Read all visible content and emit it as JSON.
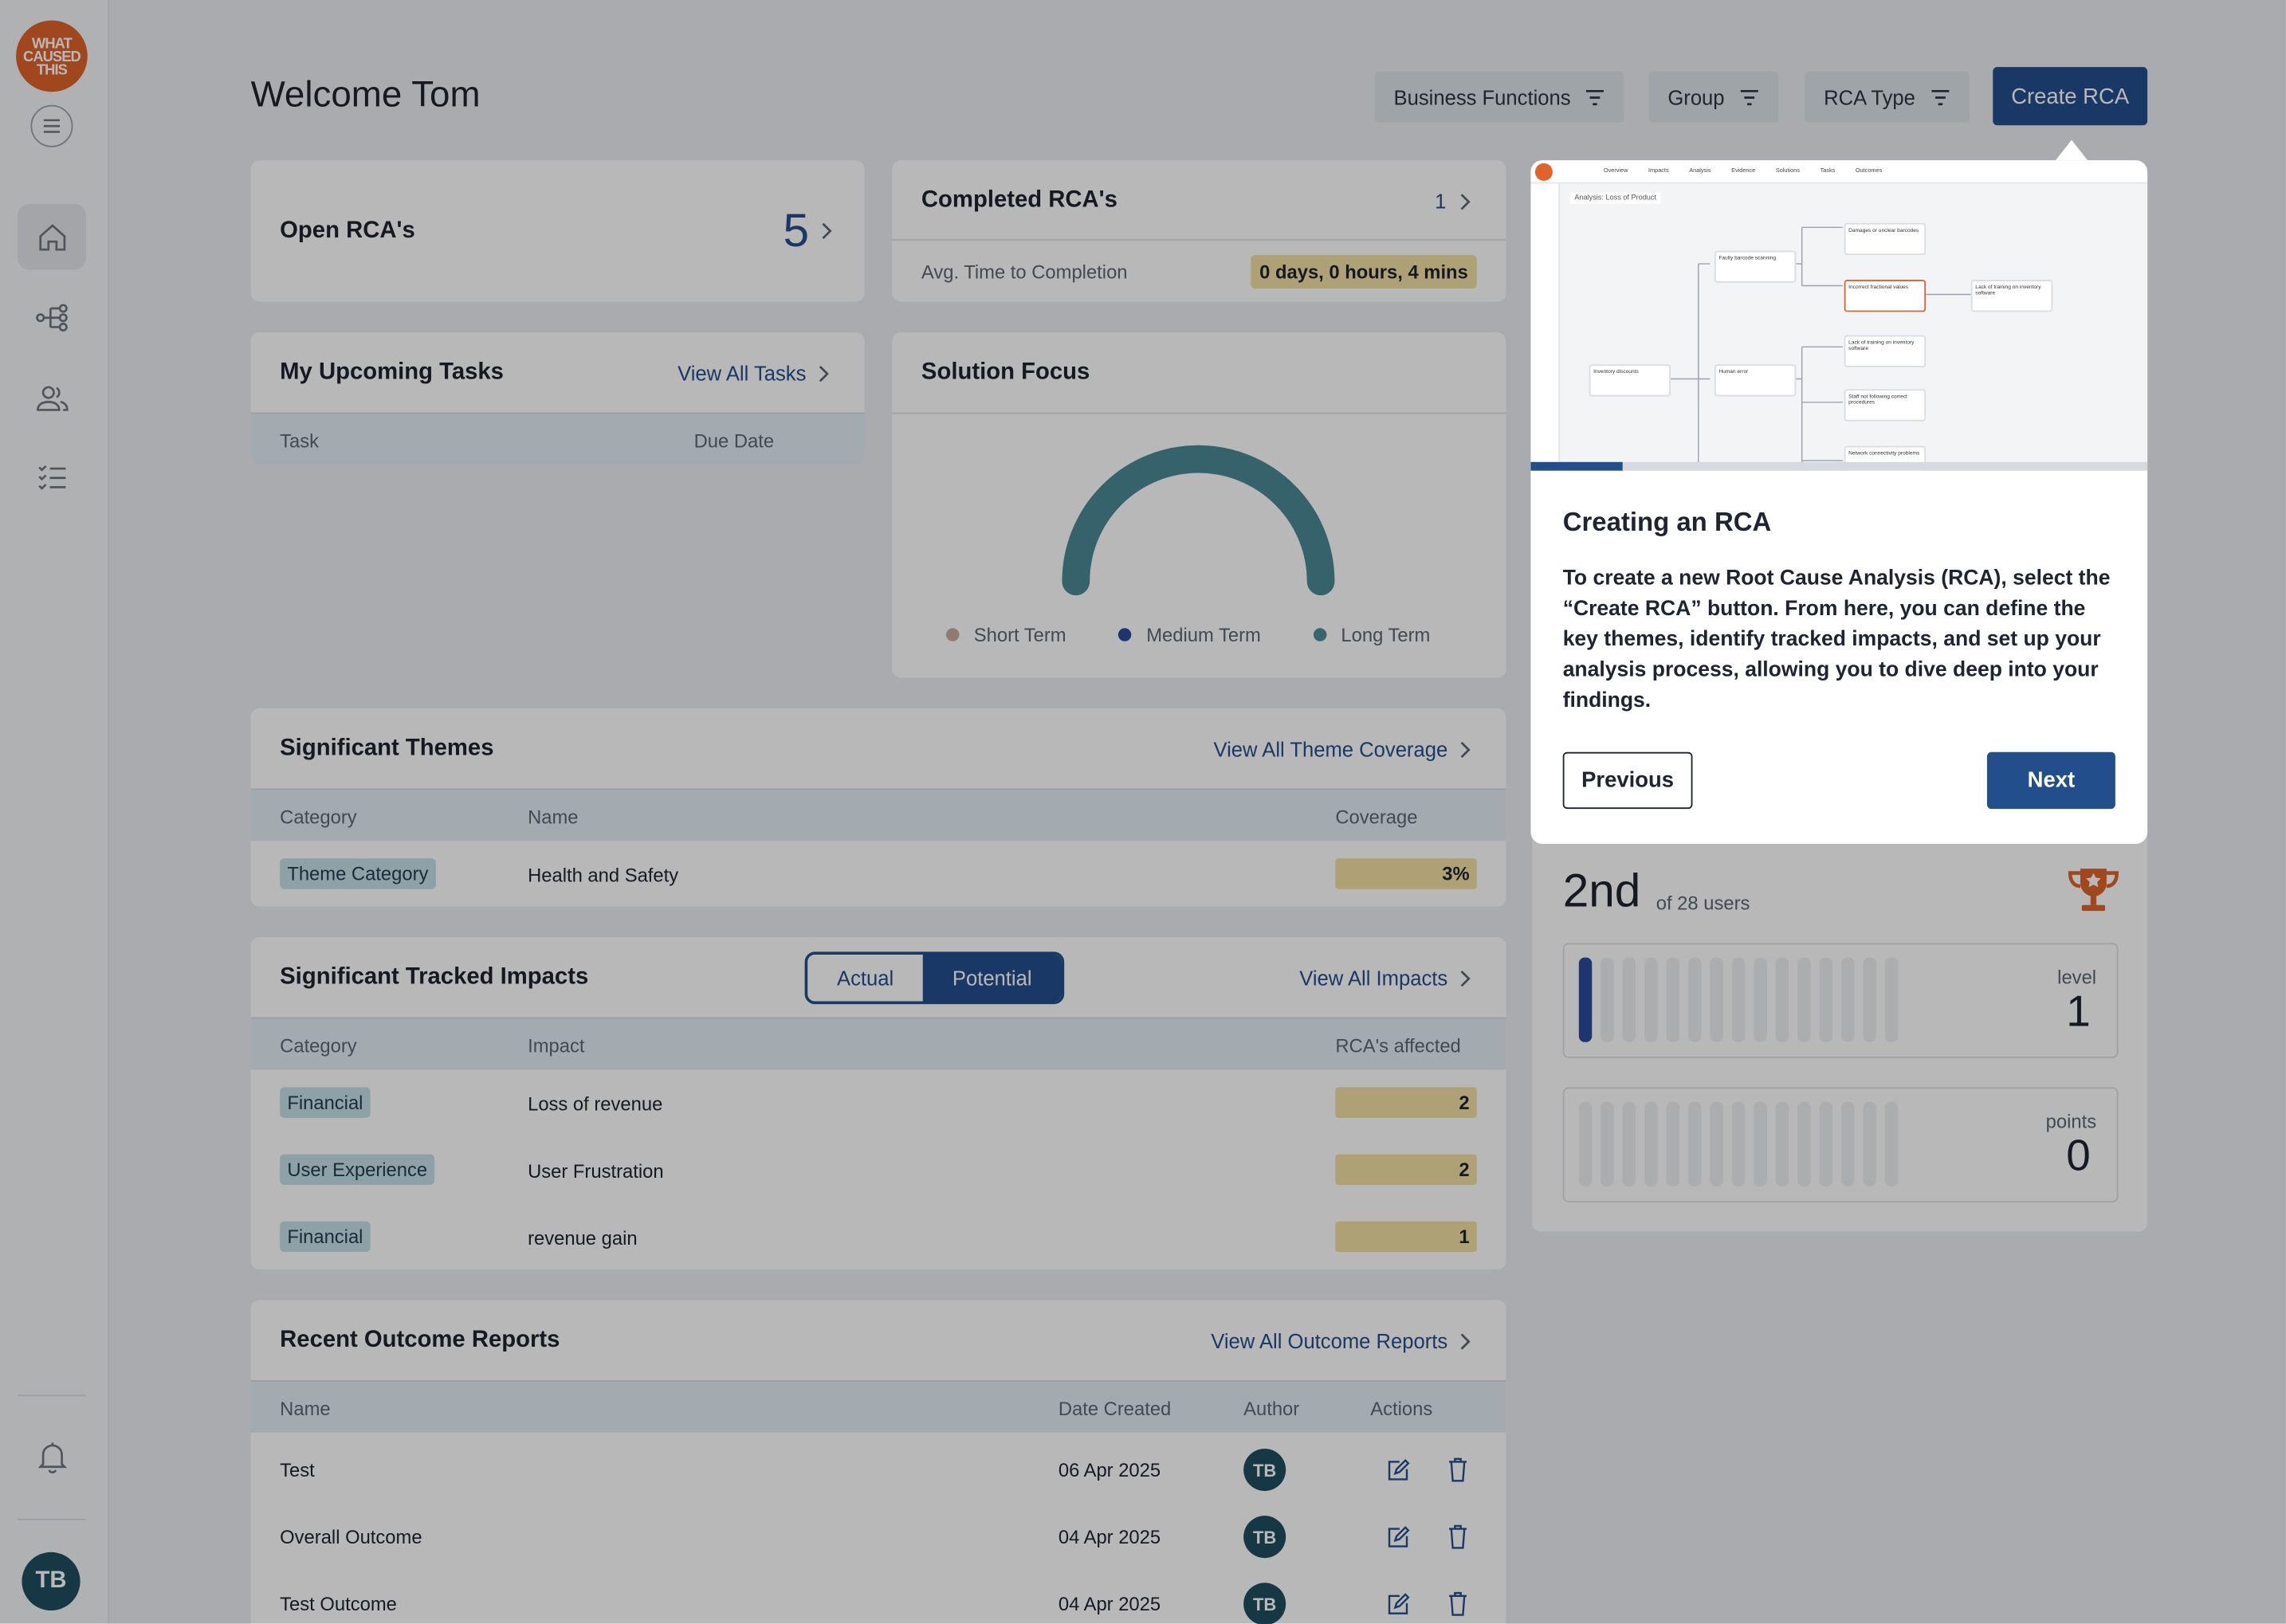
{
  "sidebar": {
    "logo_text": "WHAT CAUSED THIS",
    "user_initials": "TB",
    "icons": [
      "menu-icon",
      "home-icon",
      "hierarchy-icon",
      "users-icon",
      "checklist-icon",
      "bell-icon"
    ]
  },
  "header": {
    "welcome": "Welcome Tom",
    "filters": [
      "Business Functions",
      "Group",
      "RCA Type"
    ],
    "create": "Create RCA"
  },
  "open_rcas": {
    "label": "Open RCA's",
    "count": "5"
  },
  "completed_rcas": {
    "label": "Completed RCA's",
    "count": "1",
    "avg_label": "Avg. Time to Completion",
    "avg_value": "0 days, 0 hours, 4 mins"
  },
  "tasks": {
    "title": "My Upcoming Tasks",
    "link": "View All Tasks",
    "col_task": "Task",
    "col_due": "Due Date"
  },
  "solution": {
    "title": "Solution Focus",
    "legend": [
      {
        "label": "Short Term",
        "color": "#c9a99a"
      },
      {
        "label": "Medium Term",
        "color": "#2a4a9a"
      },
      {
        "label": "Long Term",
        "color": "#4b8c99"
      }
    ],
    "gauge_color": "#4b8896"
  },
  "themes": {
    "title": "Significant Themes",
    "link": "View All Theme Coverage",
    "cols": [
      "Category",
      "Name",
      "Coverage"
    ],
    "rows": [
      {
        "category": "Theme Category",
        "name": "Health and Safety",
        "coverage": "3%"
      }
    ]
  },
  "impacts": {
    "title": "Significant Tracked Impacts",
    "toggle": [
      "Actual",
      "Potential"
    ],
    "link": "View All Impacts",
    "cols": [
      "Category",
      "Impact",
      "RCA's affected"
    ],
    "rows": [
      {
        "category": "Financial",
        "impact": "Loss of revenue",
        "count": "2"
      },
      {
        "category": "User Experience",
        "impact": "User Frustration",
        "count": "2"
      },
      {
        "category": "Financial",
        "impact": "revenue gain",
        "count": "1"
      }
    ]
  },
  "outcomes": {
    "title": "Recent Outcome Reports",
    "link": "View All Outcome Reports",
    "cols": [
      "Name",
      "Date Created",
      "Author",
      "Actions"
    ],
    "rows": [
      {
        "name": "Test",
        "date": "06 Apr 2025",
        "author": "TB"
      },
      {
        "name": "Overall Outcome",
        "date": "04 Apr 2025",
        "author": "TB"
      },
      {
        "name": "Test Outcome",
        "date": "04 Apr 2025",
        "author": "TB"
      }
    ]
  },
  "leaderboard": {
    "rank": "2nd",
    "of_users": "of 28 users",
    "level_label": "level",
    "level": "1",
    "points_label": "points",
    "points": "0",
    "level_progress_segments": 1,
    "total_segments": 15
  },
  "tour": {
    "title": "Creating an RCA",
    "body": "To create a new Root Cause Analysis (RCA), select the “Create RCA” button. From here, you can define the key themes, identify tracked impacts, and set up your analysis process, allowing you to dive deep into your findings.",
    "prev": "Previous",
    "next": "Next",
    "progress": 0.15,
    "preview": {
      "tabs": [
        "Overview",
        "Impacts",
        "Analysis",
        "Evidence",
        "Solutions",
        "Tasks",
        "Outcomes"
      ],
      "breadcrumb": "Analysis: Loss of Product",
      "nodes": [
        "Damages or unclear barcodes",
        "Faulty barcode scanning",
        "Incorrect fractional values",
        "Lack of training on inventory software",
        "Inventory discounts",
        "Human error",
        "Lack of training on inventory software",
        "Staff not following correct procedures",
        "Network connectivity problems"
      ]
    }
  }
}
